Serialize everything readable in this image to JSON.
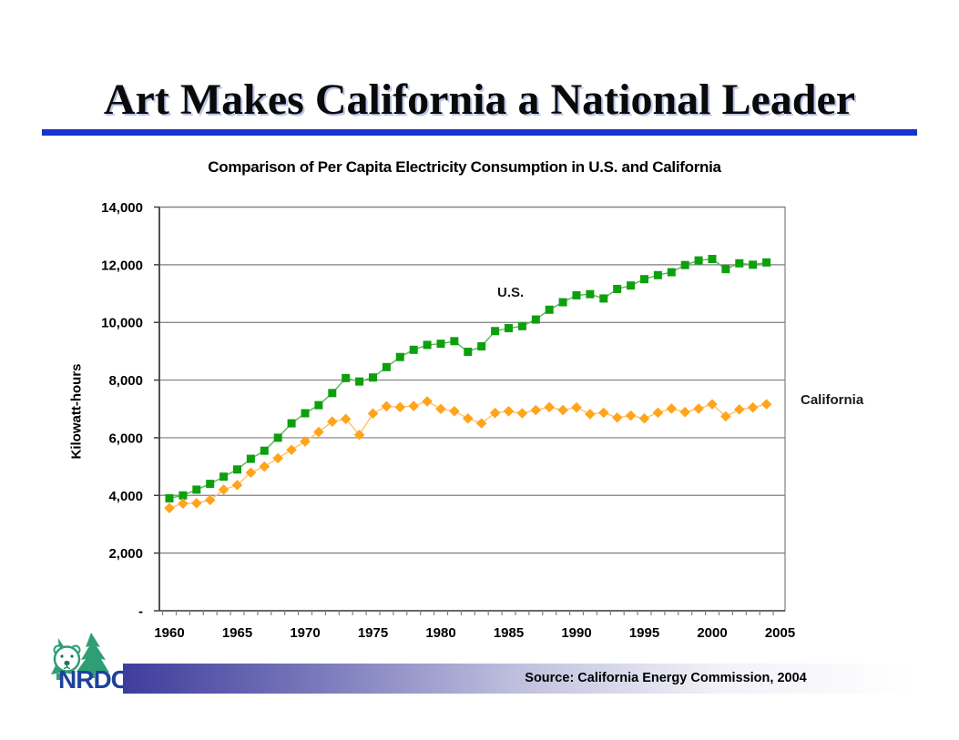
{
  "slide": {
    "title": "Art Makes California a National Leader",
    "rule_color": "#1733d1"
  },
  "chart_data": {
    "type": "line",
    "title": "Comparison of Per Capita Electricity Consumption in U.S. and California",
    "ylabel": "Kilowatt-hours",
    "xlabel": "",
    "grid": "horizontal",
    "ylim": [
      0,
      14000
    ],
    "ytick_step": 2000,
    "ytick_labels": [
      "-",
      "2,000",
      "4,000",
      "6,000",
      "8,000",
      "10,000",
      "12,000",
      "14,000"
    ],
    "xticks": [
      1960,
      1965,
      1970,
      1975,
      1980,
      1985,
      1990,
      1995,
      2000,
      2005
    ],
    "x": [
      1960,
      1961,
      1962,
      1963,
      1964,
      1965,
      1966,
      1967,
      1968,
      1969,
      1970,
      1971,
      1972,
      1973,
      1974,
      1975,
      1976,
      1977,
      1978,
      1979,
      1980,
      1981,
      1982,
      1983,
      1984,
      1985,
      1986,
      1987,
      1988,
      1989,
      1990,
      1991,
      1992,
      1993,
      1994,
      1995,
      1996,
      1997,
      1998,
      1999,
      2000,
      2001,
      2002,
      2003,
      2004
    ],
    "series": [
      {
        "name": "U.S.",
        "marker": "square",
        "marker_color": "#0da00d",
        "line_color": "#5ab55a",
        "values": [
          3900,
          4000,
          4200,
          4400,
          4650,
          4900,
          5270,
          5550,
          6000,
          6500,
          6850,
          7130,
          7550,
          8070,
          7950,
          8090,
          8450,
          8800,
          9050,
          9220,
          9260,
          9350,
          8980,
          9170,
          9700,
          9800,
          9870,
          10100,
          10440,
          10700,
          10940,
          10980,
          10830,
          11160,
          11280,
          11500,
          11640,
          11740,
          11990,
          12150,
          12200,
          11850,
          12050,
          12000,
          12080
        ]
      },
      {
        "name": "California",
        "marker": "diamond",
        "marker_color": "#ffa41c",
        "line_color": "#ffc266",
        "values": [
          3560,
          3720,
          3730,
          3840,
          4200,
          4360,
          4790,
          5000,
          5290,
          5580,
          5870,
          6200,
          6560,
          6650,
          6100,
          6840,
          7090,
          7060,
          7100,
          7260,
          7000,
          6920,
          6670,
          6500,
          6860,
          6920,
          6850,
          6960,
          7060,
          6960,
          7050,
          6820,
          6870,
          6700,
          6770,
          6670,
          6870,
          7010,
          6890,
          7010,
          7160,
          6740,
          6980,
          7050,
          7160
        ]
      }
    ],
    "annotations": [
      {
        "text": "U.S."
      },
      {
        "text": "California"
      }
    ],
    "colors": {
      "gridline": "#7f7f7f",
      "axis": "#404040",
      "plot_border": "#7f7f7f"
    }
  },
  "footer": {
    "logo_text": "NRDC",
    "logo_green": "#2f9e75",
    "logo_blue": "#1d429c",
    "source": "Source: California Energy Commission, 2004",
    "bar_gradient": [
      "#3e3d9c",
      "#7b7abc",
      "#c0c0de",
      "#f1f1f8",
      "#ffffff"
    ]
  }
}
